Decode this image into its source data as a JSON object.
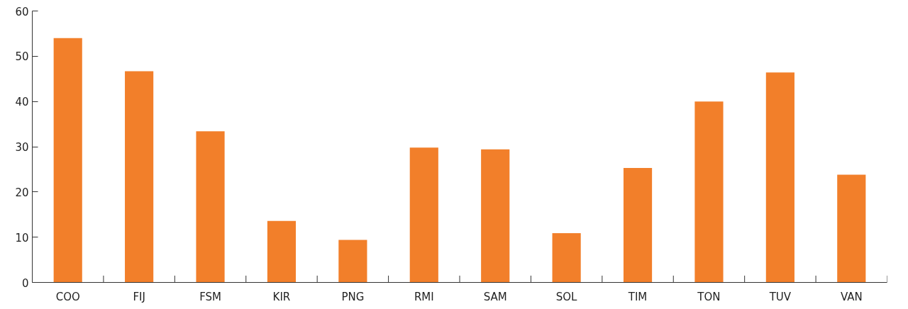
{
  "chart_data": {
    "type": "bar",
    "categories": [
      "COO",
      "FIJ",
      "FSM",
      "KIR",
      "PNG",
      "RMI",
      "SAM",
      "SOL",
      "TIM",
      "TON",
      "TUV",
      "VAN"
    ],
    "values": [
      54,
      46.7,
      33.4,
      13.6,
      9.4,
      29.8,
      29.4,
      10.9,
      25.3,
      40,
      46.4,
      23.8
    ],
    "color": "#f27f2a",
    "ylim": [
      0,
      60
    ],
    "yticks": [
      0,
      10,
      20,
      30,
      40,
      50,
      60
    ],
    "grid": false
  }
}
